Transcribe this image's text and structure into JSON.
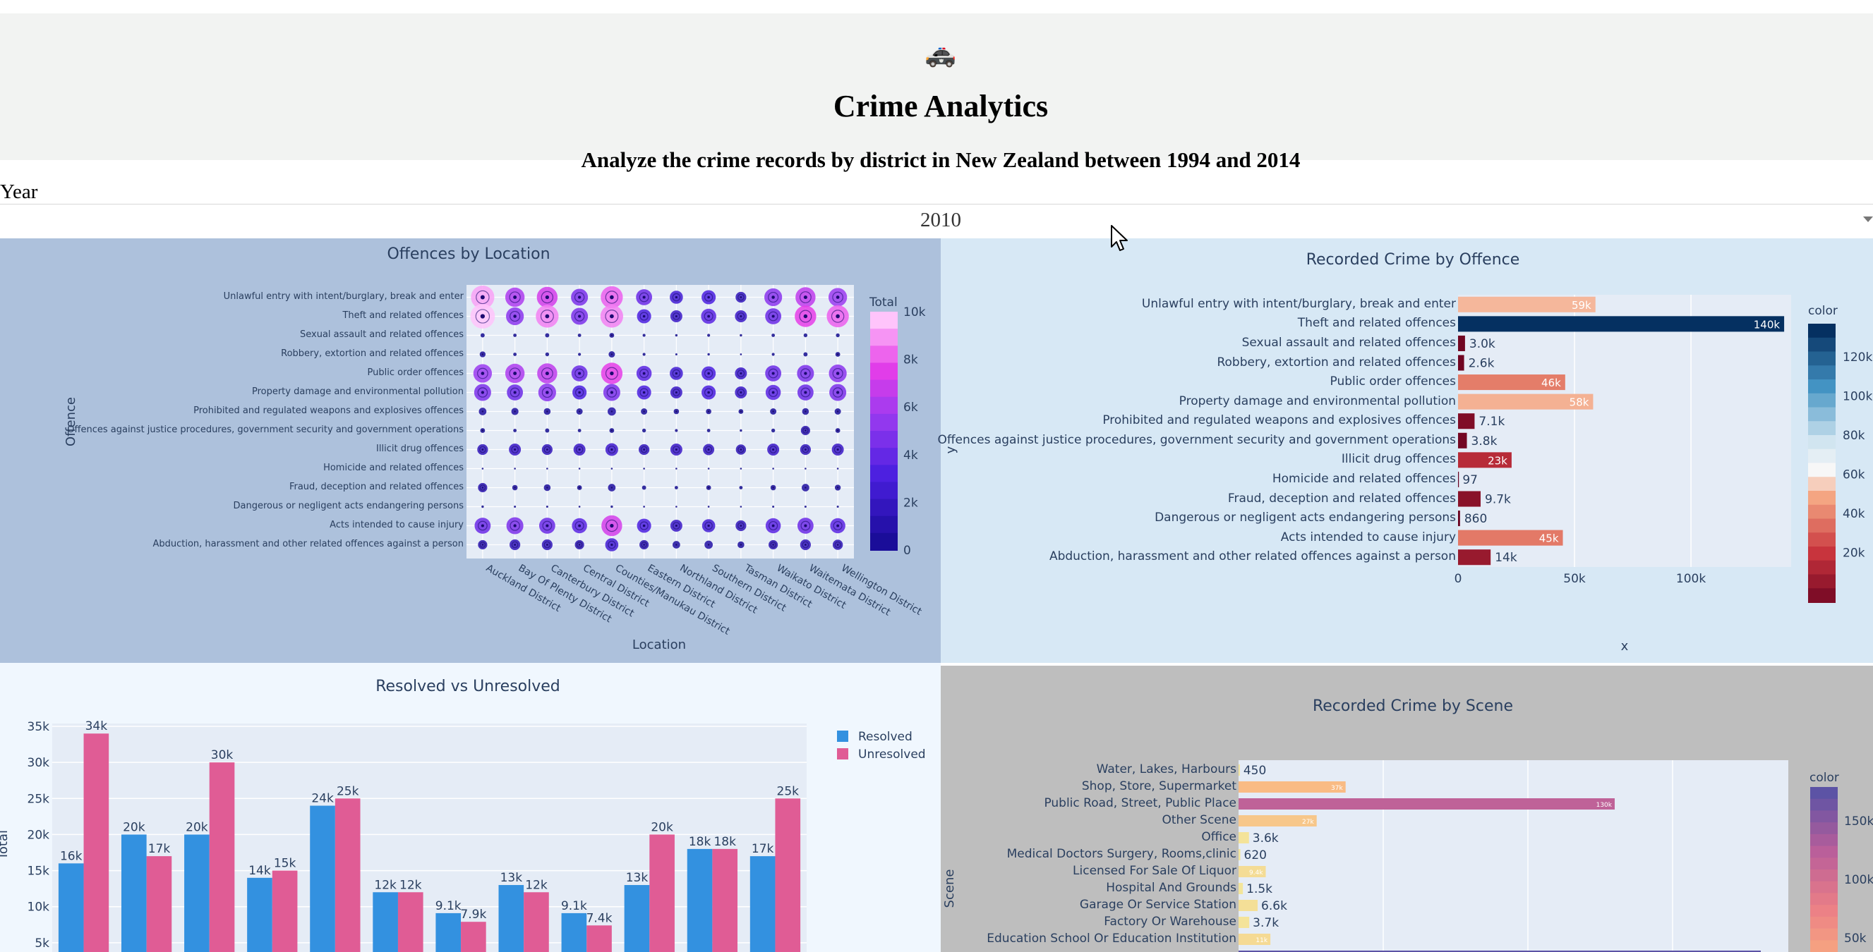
{
  "header": {
    "logo_icon": "police-car-icon",
    "logo_glyph": "🚓",
    "title": "Crime Analytics",
    "subtitle": "Analyze the crime records by district in New Zealand between 1994 and 2014"
  },
  "filter": {
    "label": "Year",
    "selected": "2010"
  },
  "panels": {
    "location": {
      "title": "Offences by Location",
      "xlabel": "Location",
      "ylabel": "Offence",
      "colorbar_title": "Total",
      "colorbar_ticks": [
        "10k",
        "8k",
        "6k",
        "4k",
        "2k",
        "0"
      ]
    },
    "offence": {
      "title": "Recorded Crime by Offence",
      "xlabel": "x",
      "ylabel": "y",
      "colorbar_title": "color",
      "colorbar_ticks": [
        "120k",
        "100k",
        "80k",
        "60k",
        "40k",
        "20k"
      ],
      "xticks": [
        "0",
        "50k",
        "100k"
      ]
    },
    "resolved": {
      "title": "Resolved vs Unresolved",
      "ylabel": "Total",
      "legend": [
        "Resolved",
        "Unresolved"
      ],
      "yticks": [
        "35k",
        "30k",
        "25k",
        "20k",
        "15k",
        "10k",
        "5k"
      ]
    },
    "scene": {
      "title": "Recorded Crime by Scene",
      "ylabel": "Scene",
      "colorbar_title": "color",
      "colorbar_ticks": [
        "150k",
        "100k",
        "50k"
      ]
    }
  },
  "chart_data": [
    {
      "type": "scatter",
      "id": "offences-by-location",
      "title": "Offences by Location",
      "xlabel": "Location",
      "ylabel": "Offence",
      "x": [
        "Auckland District",
        "Bay Of Plenty District",
        "Canterbury District",
        "Central District",
        "Counties/Manukau District",
        "Eastern District",
        "Northland District",
        "Southern District",
        "Tasman District",
        "Waikato District",
        "Waitemata District",
        "Wellington District"
      ],
      "y": [
        "Unlawful entry with intent/burglary, break and enter",
        "Theft and related offences",
        "Sexual assault and related offences",
        "Robbery, extortion and related offences",
        "Public order offences",
        "Property damage and environmental pollution",
        "Prohibited and regulated weapons and explosives offences",
        "Offences against justice procedures, government security and government operations",
        "Illicit drug offences",
        "Homicide and related offences",
        "Fraud, deception and related offences",
        "Dangerous or negligent acts endangering persons",
        "Acts intended to cause injury",
        "Abduction, harassment and other related offences against a person"
      ],
      "values": [
        [
          9500,
          6500,
          7500,
          5000,
          8500,
          4500,
          3000,
          3500,
          2000,
          5500,
          7000,
          6000
        ],
        [
          10500,
          5500,
          9000,
          5000,
          9000,
          3500,
          2500,
          4000,
          2500,
          4500,
          8000,
          8500
        ],
        [
          300,
          200,
          300,
          200,
          400,
          150,
          100,
          150,
          100,
          200,
          250,
          250
        ],
        [
          600,
          200,
          250,
          150,
          700,
          150,
          80,
          100,
          60,
          150,
          300,
          400
        ],
        [
          6000,
          6500,
          7000,
          4500,
          8000,
          4000,
          3000,
          3500,
          2500,
          4500,
          5000,
          5500
        ],
        [
          5000,
          4500,
          5500,
          3500,
          5000,
          3500,
          2500,
          3500,
          2500,
          4000,
          4500,
          5000
        ],
        [
          1000,
          900,
          800,
          700,
          1200,
          700,
          500,
          500,
          400,
          700,
          800,
          700
        ],
        [
          400,
          200,
          300,
          200,
          400,
          250,
          150,
          200,
          100,
          250,
          1500,
          400
        ],
        [
          2000,
          2500,
          2000,
          2500,
          2800,
          2000,
          2500,
          2200,
          1800,
          2500,
          2000,
          2500
        ],
        [
          30,
          20,
          20,
          10,
          30,
          10,
          10,
          10,
          10,
          20,
          20,
          20
        ],
        [
          1500,
          500,
          800,
          400,
          1000,
          300,
          200,
          400,
          200,
          500,
          1000,
          600
        ],
        [
          100,
          80,
          80,
          60,
          100,
          60,
          40,
          60,
          40,
          80,
          80,
          80
        ],
        [
          4500,
          5000,
          4500,
          4000,
          7500,
          3500,
          2500,
          3000,
          2000,
          4000,
          4500,
          4000
        ],
        [
          1500,
          2000,
          2000,
          1500,
          3000,
          1500,
          1000,
          1200,
          800,
          1500,
          2000,
          1800
        ]
      ],
      "colorbar": {
        "title": "Total",
        "range": [
          0,
          10000
        ]
      }
    },
    {
      "type": "bar",
      "id": "crime-by-offence",
      "orientation": "h",
      "title": "Recorded Crime by Offence",
      "xlabel": "x",
      "ylabel": "y",
      "xlim": [
        0,
        143000
      ],
      "categories": [
        "Unlawful entry with intent/burglary, break and enter",
        "Theft and related offences",
        "Sexual assault and related offences",
        "Robbery, extortion and related offences",
        "Public order offences",
        "Property damage and environmental pollution",
        "Prohibited and regulated weapons and explosives offences",
        "Offences against justice procedures, government security and government operations",
        "Illicit drug offences",
        "Homicide and related offences",
        "Fraud, deception and related offences",
        "Dangerous or negligent acts endangering persons",
        "Acts intended to cause injury",
        "Abduction, harassment and other related offences against a person"
      ],
      "values": [
        59000,
        140000,
        3000,
        2600,
        46000,
        58000,
        7100,
        3800,
        23000,
        97,
        9700,
        860,
        45000,
        14000
      ],
      "labels": [
        "59k",
        "140k",
        "3.0k",
        "2.6k",
        "46k",
        "58k",
        "7.1k",
        "3.8k",
        "23k",
        "97",
        "9.7k",
        "860",
        "45k",
        "14k"
      ],
      "colorbar": {
        "title": "color",
        "range": [
          0,
          140000
        ]
      }
    },
    {
      "type": "bar",
      "id": "resolved-vs-unresolved",
      "title": "Resolved vs Unresolved",
      "ylabel": "Total",
      "ylim": [
        0,
        35000
      ],
      "series": [
        {
          "name": "Resolved",
          "color": "#3391e0",
          "values": [
            16000,
            20000,
            20000,
            14000,
            24000,
            12000,
            9100,
            13000,
            9100,
            13000,
            18000,
            17000
          ],
          "labels": [
            "16k",
            "20k",
            "20k",
            "14k",
            "24k",
            "12k",
            "9.1k",
            "13k",
            "9.1k",
            "13k",
            "18k",
            "17k"
          ]
        },
        {
          "name": "Unresolved",
          "color": "#e05c95",
          "values": [
            34000,
            17000,
            30000,
            15000,
            25000,
            12000,
            7900,
            12000,
            7400,
            20000,
            18000,
            25000
          ],
          "labels": [
            "34k",
            "17k",
            "30k",
            "15k",
            "25k",
            "12k",
            "7.9k",
            "12k",
            "7.4k",
            "20k",
            "18k",
            "25k"
          ]
        }
      ]
    },
    {
      "type": "bar",
      "id": "crime-by-scene",
      "orientation": "h",
      "title": "Recorded Crime by Scene",
      "ylabel": "Scene",
      "xlim": [
        0,
        190000
      ],
      "categories": [
        "Water, Lakes, Harbours",
        "Shop, Store, Supermarket",
        "Public Road, Street, Public Place",
        "Other Scene",
        "Office",
        "Medical Doctors Surgery, Rooms,clinic",
        "Licensed For Sale Of Liquor",
        "Hospital And Grounds",
        "Garage Or Service Station",
        "Factory Or Warehouse",
        "Education School Or Education Institution"
      ],
      "values": [
        450,
        37000,
        130000,
        27000,
        3600,
        620,
        9400,
        1500,
        6600,
        3700,
        11000
      ],
      "labels": [
        "450",
        "37k",
        "130k",
        "27k",
        "3.6k",
        "620",
        "9.4k",
        "1.5k",
        "6.6k",
        "3.7k",
        "11k"
      ],
      "colorbar": {
        "title": "color",
        "range": [
          0,
          180000
        ]
      }
    }
  ]
}
